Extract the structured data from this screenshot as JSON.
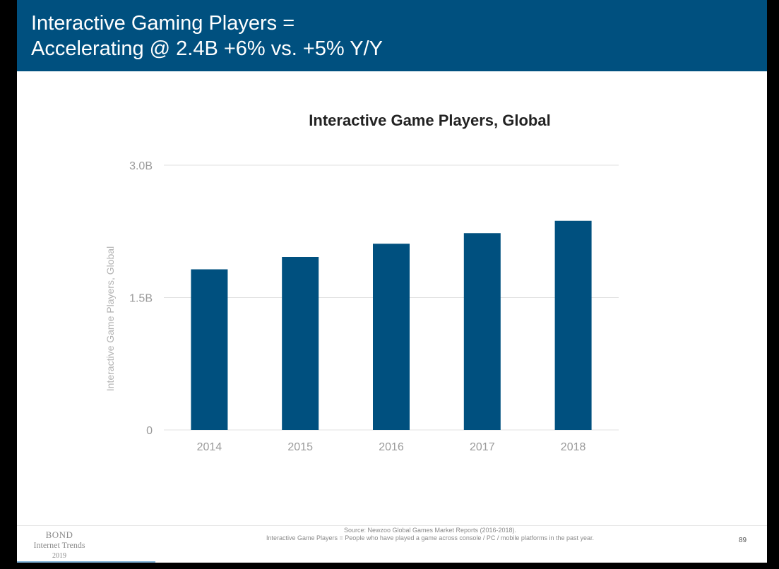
{
  "header": {
    "title_line1": "Interactive Gaming Players =",
    "title_line2": "Accelerating @ 2.4B +6% vs. +5% Y/Y"
  },
  "chart_data": {
    "type": "bar",
    "title": "Interactive Game Players, Global",
    "xlabel": "",
    "ylabel": "Interactive Game Players, Global",
    "categories": [
      "2014",
      "2015",
      "2016",
      "2017",
      "2018"
    ],
    "values": [
      1.82,
      1.96,
      2.11,
      2.23,
      2.37
    ],
    "unit": "B",
    "ylim": [
      0,
      3.0
    ],
    "yticks": [
      {
        "value": 0,
        "label": "0"
      },
      {
        "value": 1.5,
        "label": "1.5B"
      },
      {
        "value": 3.0,
        "label": "3.0B"
      }
    ],
    "grid": true,
    "bar_color": "#00507f"
  },
  "footer": {
    "logo_line1": "BOND",
    "logo_line2": "Internet Trends",
    "logo_line3": "2019",
    "source_line1": "Source: Newzoo Global Games Market Reports (2016-2018).",
    "source_line2": "Interactive Game Players = People who have played a game across console / PC / mobile platforms in the past year.",
    "page_number": "89"
  }
}
